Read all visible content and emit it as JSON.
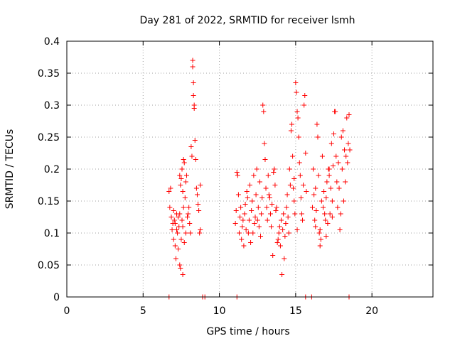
{
  "colors": {
    "series": "#ff0000",
    "frame": "#000000",
    "grid": "#a0a0a0"
  },
  "chart_data": {
    "type": "scatter",
    "title": "Day 281 of 2022, SRMTID for receiver lsmh",
    "xlabel": "GPS time / hours",
    "ylabel": "SRMTID / TECUs",
    "xlim": [
      0,
      24
    ],
    "ylim": [
      0,
      0.4
    ],
    "xticks": [
      0,
      5,
      10,
      15,
      20
    ],
    "xtick_labels": [
      "0",
      "5",
      "10",
      "15",
      "20"
    ],
    "yticks": [
      0,
      0.05,
      0.1,
      0.15,
      0.2,
      0.25,
      0.3,
      0.35,
      0.4
    ],
    "ytick_labels": [
      "0",
      "0.05",
      "0.1",
      "0.15",
      "0.2",
      "0.25",
      "0.3",
      "0.35",
      "0.4"
    ],
    "grid": true,
    "legend": "none",
    "marker": "+",
    "series": [
      {
        "name": "lsmh",
        "points": [
          [
            6.7,
            0.165
          ],
          [
            6.75,
            0.14
          ],
          [
            6.8,
            0.17
          ],
          [
            6.85,
            0.125
          ],
          [
            6.9,
            0.105
          ],
          [
            6.95,
            0.115
          ],
          [
            7.0,
            0.09
          ],
          [
            7.05,
            0.12
          ],
          [
            7.1,
            0.08
          ],
          [
            7.15,
            0.06
          ],
          [
            7.2,
            0.13
          ],
          [
            7.25,
            0.1
          ],
          [
            7.3,
            0.075
          ],
          [
            7.35,
            0.11
          ],
          [
            7.4,
            0.05
          ],
          [
            7.45,
            0.045
          ],
          [
            7.5,
            0.09
          ],
          [
            7.55,
            0.12
          ],
          [
            7.6,
            0.035
          ],
          [
            7.65,
            0.14
          ],
          [
            7.0,
            0.135
          ],
          [
            7.1,
            0.115
          ],
          [
            7.2,
            0.105
          ],
          [
            7.3,
            0.125
          ],
          [
            7.4,
            0.13
          ],
          [
            7.4,
            0.19
          ],
          [
            7.45,
            0.175
          ],
          [
            7.5,
            0.185
          ],
          [
            7.55,
            0.2
          ],
          [
            7.6,
            0.165
          ],
          [
            7.65,
            0.215
          ],
          [
            7.7,
            0.21
          ],
          [
            7.75,
            0.155
          ],
          [
            7.8,
            0.18
          ],
          [
            7.85,
            0.19
          ],
          [
            7.9,
            0.125
          ],
          [
            7.95,
            0.13
          ],
          [
            8.0,
            0.14
          ],
          [
            8.05,
            0.115
          ],
          [
            8.1,
            0.1
          ],
          [
            8.15,
            0.235
          ],
          [
            8.2,
            0.22
          ],
          [
            8.25,
            0.37
          ],
          [
            8.25,
            0.36
          ],
          [
            8.3,
            0.335
          ],
          [
            8.3,
            0.315
          ],
          [
            8.35,
            0.3
          ],
          [
            8.35,
            0.295
          ],
          [
            8.4,
            0.245
          ],
          [
            8.45,
            0.215
          ],
          [
            8.5,
            0.17
          ],
          [
            8.55,
            0.16
          ],
          [
            8.6,
            0.145
          ],
          [
            8.65,
            0.135
          ],
          [
            8.7,
            0.1
          ],
          [
            8.75,
            0.105
          ],
          [
            8.75,
            0.175
          ],
          [
            7.7,
            0.085
          ],
          [
            7.8,
            0.1
          ],
          [
            7.6,
            0.11
          ],
          [
            11.05,
            0.115
          ],
          [
            11.1,
            0.135
          ],
          [
            11.15,
            0.195
          ],
          [
            11.2,
            0.19
          ],
          [
            11.25,
            0.16
          ],
          [
            11.3,
            0.1
          ],
          [
            11.35,
            0.125
          ],
          [
            11.4,
            0.14
          ],
          [
            11.45,
            0.09
          ],
          [
            11.5,
            0.11
          ],
          [
            11.55,
            0.12
          ],
          [
            11.6,
            0.08
          ],
          [
            11.65,
            0.13
          ],
          [
            11.7,
            0.145
          ],
          [
            11.75,
            0.105
          ],
          [
            11.8,
            0.165
          ],
          [
            11.85,
            0.155
          ],
          [
            11.9,
            0.1
          ],
          [
            11.95,
            0.12
          ],
          [
            12.0,
            0.175
          ],
          [
            12.05,
            0.085
          ],
          [
            12.1,
            0.135
          ],
          [
            12.15,
            0.15
          ],
          [
            12.2,
            0.1
          ],
          [
            12.25,
            0.19
          ],
          [
            12.3,
            0.115
          ],
          [
            12.35,
            0.125
          ],
          [
            12.4,
            0.16
          ],
          [
            12.45,
            0.2
          ],
          [
            12.5,
            0.12
          ],
          [
            12.55,
            0.14
          ],
          [
            12.6,
            0.11
          ],
          [
            12.65,
            0.18
          ],
          [
            12.7,
            0.095
          ],
          [
            12.75,
            0.13
          ],
          [
            12.8,
            0.155
          ],
          [
            12.85,
            0.3
          ],
          [
            12.9,
            0.29
          ],
          [
            12.95,
            0.24
          ],
          [
            13.0,
            0.215
          ],
          [
            13.05,
            0.17
          ],
          [
            13.1,
            0.14
          ],
          [
            13.15,
            0.12
          ],
          [
            13.2,
            0.19
          ],
          [
            13.25,
            0.16
          ],
          [
            13.3,
            0.155
          ],
          [
            13.35,
            0.13
          ],
          [
            13.4,
            0.11
          ],
          [
            13.45,
            0.145
          ],
          [
            13.5,
            0.065
          ],
          [
            13.55,
            0.195
          ],
          [
            13.6,
            0.2
          ],
          [
            13.65,
            0.175
          ],
          [
            13.7,
            0.135
          ],
          [
            13.75,
            0.14
          ],
          [
            13.8,
            0.085
          ],
          [
            13.85,
            0.09
          ],
          [
            13.9,
            0.1
          ],
          [
            13.95,
            0.11
          ],
          [
            14.0,
            0.08
          ],
          [
            14.05,
            0.12
          ],
          [
            14.1,
            0.035
          ],
          [
            14.15,
            0.105
          ],
          [
            14.2,
            0.13
          ],
          [
            14.25,
            0.06
          ],
          [
            14.3,
            0.095
          ],
          [
            14.35,
            0.115
          ],
          [
            14.4,
            0.14
          ],
          [
            14.45,
            0.16
          ],
          [
            14.5,
            0.125
          ],
          [
            14.55,
            0.1
          ],
          [
            14.6,
            0.2
          ],
          [
            14.65,
            0.175
          ],
          [
            14.7,
            0.26
          ],
          [
            14.75,
            0.27
          ],
          [
            14.8,
            0.22
          ],
          [
            14.85,
            0.17
          ],
          [
            14.9,
            0.15
          ],
          [
            14.95,
            0.13
          ],
          [
            15.0,
            0.335
          ],
          [
            15.05,
            0.32
          ],
          [
            15.1,
            0.29
          ],
          [
            15.15,
            0.28
          ],
          [
            15.2,
            0.25
          ],
          [
            15.25,
            0.21
          ],
          [
            15.3,
            0.19
          ],
          [
            15.35,
            0.155
          ],
          [
            15.4,
            0.13
          ],
          [
            15.45,
            0.12
          ],
          [
            15.5,
            0.175
          ],
          [
            15.55,
            0.3
          ],
          [
            15.6,
            0.315
          ],
          [
            15.65,
            0.225
          ],
          [
            15.7,
            0.165
          ],
          [
            14.9,
            0.185
          ],
          [
            15.1,
            0.105
          ],
          [
            16.1,
            0.14
          ],
          [
            16.15,
            0.2
          ],
          [
            16.2,
            0.16
          ],
          [
            16.25,
            0.12
          ],
          [
            16.3,
            0.17
          ],
          [
            16.35,
            0.135
          ],
          [
            16.4,
            0.27
          ],
          [
            16.45,
            0.25
          ],
          [
            16.5,
            0.19
          ],
          [
            16.55,
            0.1
          ],
          [
            16.6,
            0.08
          ],
          [
            16.65,
            0.09
          ],
          [
            16.7,
            0.15
          ],
          [
            16.75,
            0.22
          ],
          [
            16.8,
            0.14
          ],
          [
            16.85,
            0.165
          ],
          [
            16.9,
            0.13
          ],
          [
            16.95,
            0.12
          ],
          [
            17.0,
            0.155
          ],
          [
            17.05,
            0.18
          ],
          [
            17.1,
            0.115
          ],
          [
            17.15,
            0.2
          ],
          [
            17.2,
            0.19
          ],
          [
            17.25,
            0.13
          ],
          [
            17.3,
            0.17
          ],
          [
            17.35,
            0.24
          ],
          [
            17.4,
            0.15
          ],
          [
            17.45,
            0.205
          ],
          [
            17.5,
            0.255
          ],
          [
            17.55,
            0.29
          ],
          [
            17.6,
            0.29
          ],
          [
            17.65,
            0.22
          ],
          [
            17.7,
            0.18
          ],
          [
            17.75,
            0.14
          ],
          [
            17.8,
            0.21
          ],
          [
            17.85,
            0.17
          ],
          [
            17.9,
            0.105
          ],
          [
            17.95,
            0.13
          ],
          [
            18.0,
            0.25
          ],
          [
            18.05,
            0.2
          ],
          [
            18.1,
            0.26
          ],
          [
            18.15,
            0.15
          ],
          [
            18.2,
            0.23
          ],
          [
            18.25,
            0.18
          ],
          [
            18.3,
            0.22
          ],
          [
            18.35,
            0.28
          ],
          [
            18.4,
            0.21
          ],
          [
            18.45,
            0.24
          ],
          [
            18.5,
            0.285
          ],
          [
            18.55,
            0.23
          ],
          [
            16.3,
            0.11
          ],
          [
            16.6,
            0.105
          ],
          [
            17.0,
            0.095
          ],
          [
            17.2,
            0.2
          ],
          [
            17.4,
            0.125
          ]
        ],
        "baseline_markers": [
          6.7,
          8.9,
          9.05,
          11.15,
          15.65,
          16.05,
          18.5
        ]
      }
    ]
  }
}
